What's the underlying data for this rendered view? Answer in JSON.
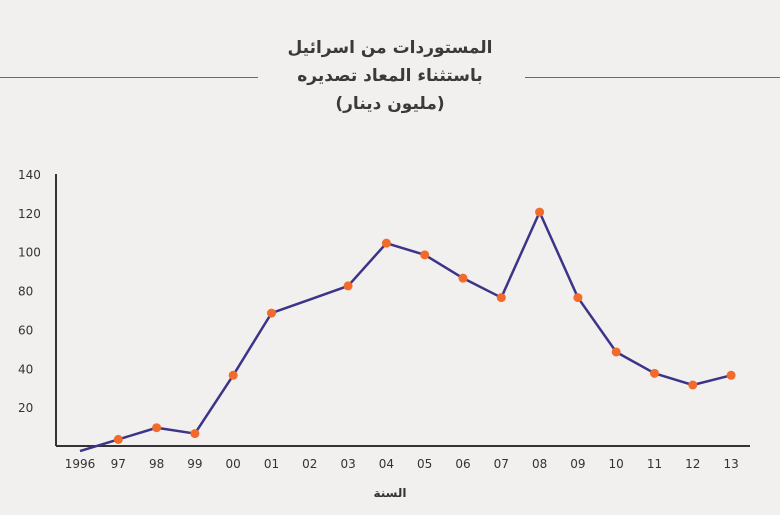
{
  "title": {
    "line1": "المستوردات من اسرائيل",
    "line2": "باستثناء المعاد تصديره",
    "line3": "(مليون دينار)"
  },
  "chart_data": {
    "type": "line",
    "title": "المستوردات من اسرائيل باستثناء المعاد تصديره (مليون دينار)",
    "xlabel": "السنة",
    "ylabel": "",
    "categories": [
      "1996",
      "97",
      "98",
      "99",
      "00",
      "01",
      "02",
      "03",
      "04",
      "05",
      "06",
      "07",
      "08",
      "09",
      "10",
      "11",
      "12",
      "13"
    ],
    "series": [
      {
        "values": [
          1,
          7,
          13,
          10,
          40,
          72,
          79,
          86,
          108,
          102,
          90,
          80,
          124,
          80,
          52,
          41,
          35,
          40
        ]
      }
    ],
    "marker_visible": [
      false,
      true,
      true,
      true,
      true,
      true,
      false,
      true,
      true,
      true,
      true,
      true,
      true,
      true,
      true,
      true,
      true,
      true
    ],
    "yticks": [
      20,
      40,
      60,
      80,
      100,
      120,
      140
    ],
    "ylim": [
      0,
      140
    ],
    "grid": false,
    "colors": {
      "line": "#3c3488",
      "marker": "#f26b2a",
      "axis": "#333333",
      "background": "#f1f0ee"
    }
  }
}
